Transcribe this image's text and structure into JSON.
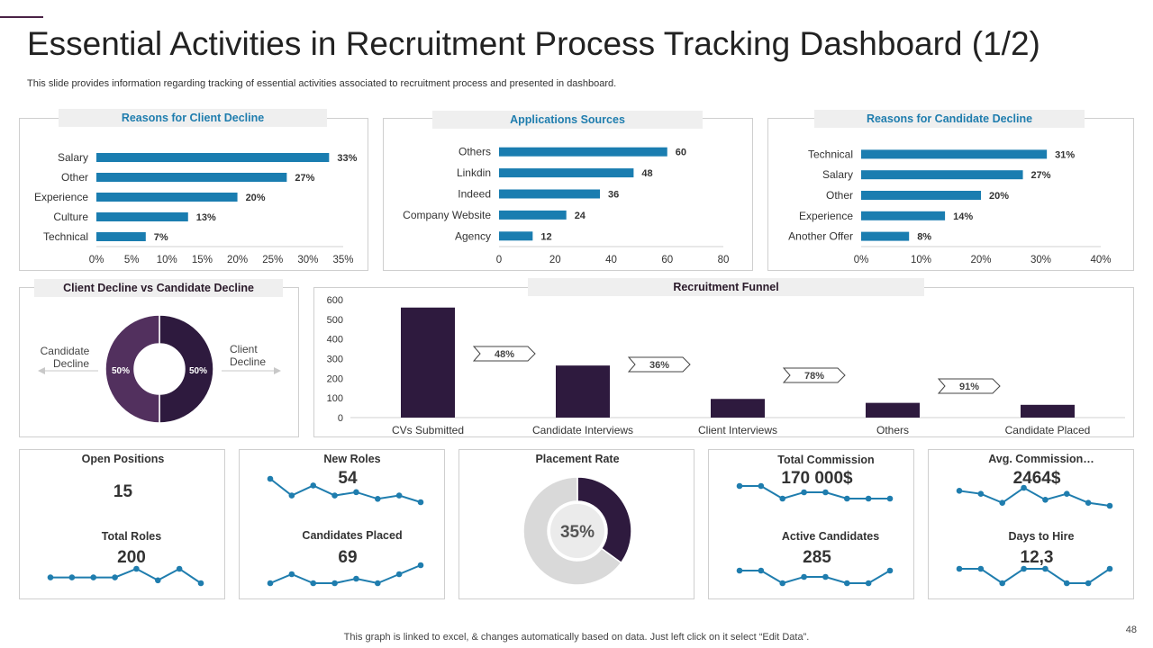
{
  "title": "Essential Activities in Recruitment Process Tracking Dashboard (1/2)",
  "subtitle": "This slide provides information regarding tracking of essential activities associated to recruitment process and presented in dashboard.",
  "footer": "This graph is linked to excel, & changes automatically based on data. Just left click on it select “Edit Data”.",
  "page_number": "48",
  "colors": {
    "bar_blue": "#1a7db0",
    "purple_dark": "#2e1a3e",
    "purple_mid": "#52305e",
    "spark": "#1f7dae",
    "grey_light": "#d9d9d9"
  },
  "chart_data": [
    {
      "id": "client_decline",
      "type": "bar",
      "orientation": "horizontal",
      "title": "Reasons for Client Decline",
      "categories": [
        "Salary",
        "Other",
        "Experience",
        "Culture",
        "Technical"
      ],
      "values": [
        33,
        27,
        20,
        13,
        7
      ],
      "value_labels": [
        "33%",
        "27%",
        "20%",
        "13%",
        "7%"
      ],
      "xlim": [
        0,
        35
      ],
      "ticks": [
        "0%",
        "5%",
        "10%",
        "15%",
        "20%",
        "25%",
        "30%",
        "35%"
      ]
    },
    {
      "id": "app_sources",
      "type": "bar",
      "orientation": "horizontal",
      "title": "Applications Sources",
      "categories": [
        "Others",
        "Linkdin",
        "Indeed",
        "Company Website",
        "Agency"
      ],
      "values": [
        60,
        48,
        36,
        24,
        12
      ],
      "value_labels": [
        "60",
        "48",
        "36",
        "24",
        "12"
      ],
      "xlim": [
        0,
        80
      ],
      "ticks": [
        "0",
        "20",
        "40",
        "60",
        "80"
      ]
    },
    {
      "id": "candidate_decline",
      "type": "bar",
      "orientation": "horizontal",
      "title": "Reasons for Candidate Decline",
      "categories": [
        "Technical",
        "Salary",
        "Other",
        "Experience",
        "Another Offer"
      ],
      "values": [
        31,
        27,
        20,
        14,
        8
      ],
      "value_labels": [
        "31%",
        "27%",
        "20%",
        "14%",
        "8%"
      ],
      "xlim": [
        0,
        40
      ],
      "ticks": [
        "0%",
        "10%",
        "20%",
        "30%",
        "40%"
      ]
    },
    {
      "id": "decline_donut",
      "type": "pie",
      "title": "Client Decline vs Candidate Decline",
      "categories": [
        "Client Decline",
        "Candidate Decline"
      ],
      "values": [
        50,
        50
      ],
      "value_labels": [
        "50%",
        "50%"
      ],
      "left_label_1": "Candidate",
      "left_label_2": "Decline",
      "right_label_1": "Client",
      "right_label_2": "Decline"
    },
    {
      "id": "funnel",
      "type": "bar",
      "title": "Recruitment Funnel",
      "categories": [
        "CVs Submitted",
        "Candidate Interviews",
        "Client Interviews",
        "Others",
        "Candidate Placed"
      ],
      "values": [
        560,
        265,
        95,
        75,
        65
      ],
      "ylim": [
        0,
        600
      ],
      "ticks": [
        "0",
        "100",
        "200",
        "300",
        "400",
        "500",
        "600"
      ],
      "conversion_labels": [
        "48%",
        "36%",
        "78%",
        "91%"
      ]
    },
    {
      "id": "placement_rate",
      "type": "pie",
      "title": "Placement Rate",
      "values": [
        35,
        65
      ],
      "center_label": "35%"
    }
  ],
  "kpis": {
    "open_positions": {
      "label": "Open Positions",
      "value": "15"
    },
    "total_roles": {
      "label": "Total Roles",
      "value": "200",
      "spark": [
        3,
        3,
        3,
        3,
        6,
        2,
        6,
        1
      ]
    },
    "new_roles": {
      "label": "New Roles",
      "value": "54",
      "spark": [
        8,
        3,
        6,
        3,
        4,
        2,
        3,
        1
      ]
    },
    "candidates_placed": {
      "label": "Candidates Placed",
      "value": "69",
      "spark": [
        2,
        4,
        2,
        2,
        3,
        2,
        4,
        6
      ]
    },
    "total_commission": {
      "label": "Total Commission",
      "value": "170 000$",
      "spark": [
        4,
        4,
        2,
        3,
        3,
        2,
        2,
        2
      ]
    },
    "active_candidates": {
      "label": "Active Candidates",
      "value": "285",
      "spark": [
        4,
        4,
        2,
        3,
        3,
        2,
        2,
        4
      ]
    },
    "avg_commission": {
      "label": "Avg. Commission…",
      "value": "2464$",
      "spark": [
        6,
        5,
        2,
        7,
        3,
        5,
        2,
        1
      ]
    },
    "days_to_hire": {
      "label": "Days to Hire",
      "value": "12,3",
      "spark": [
        3,
        3,
        1,
        3,
        3,
        1,
        1,
        3
      ]
    }
  }
}
